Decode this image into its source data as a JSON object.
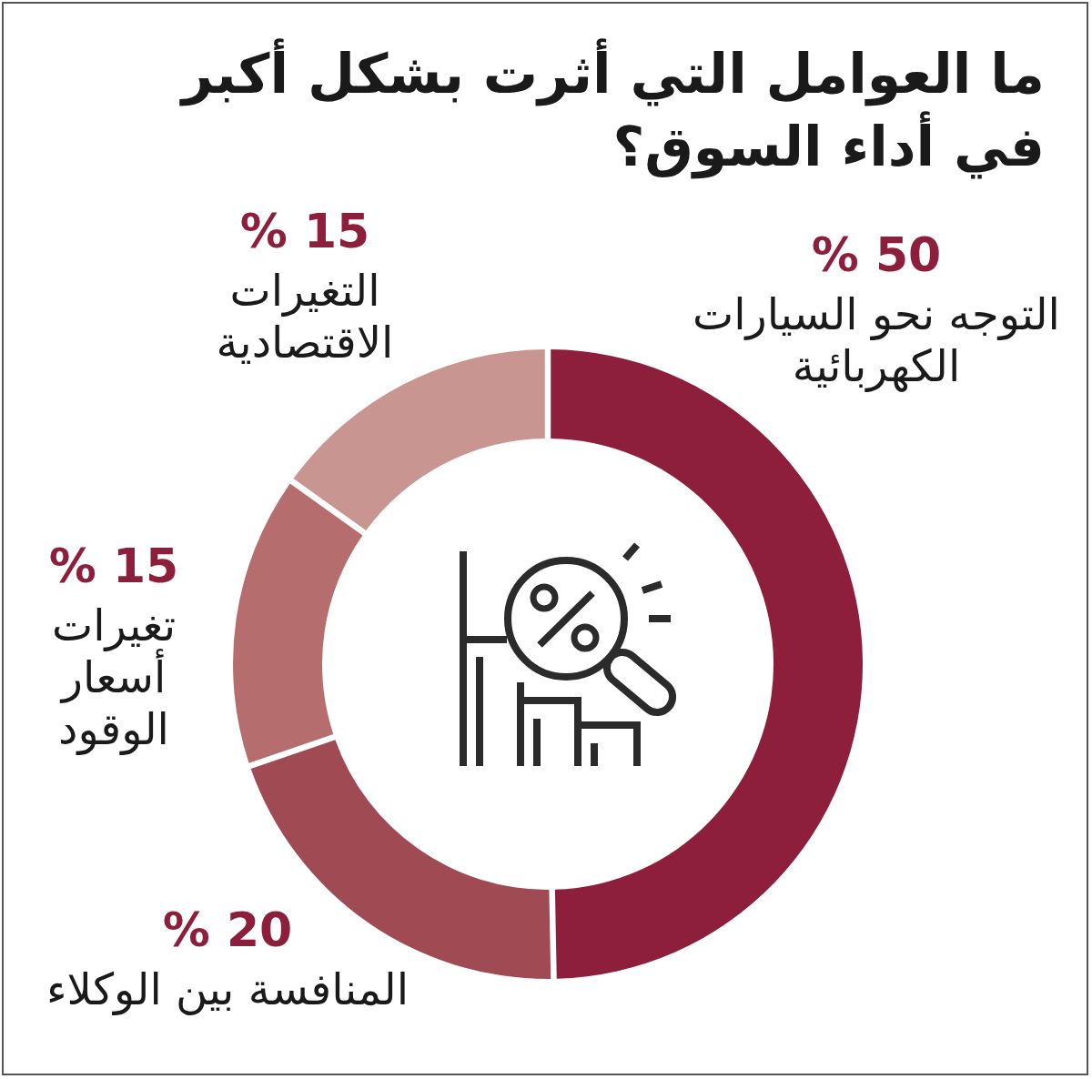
{
  "chart_data": {
    "type": "donut",
    "title": "ما العوامل التي أثرت بشكل أكبر في أداء السوق؟",
    "categories": [
      "التوجه نحو السيارات الكهربائية",
      "المنافسة بين الوكلاء",
      "تغيرات أسعار الوقود",
      "التغيرات الاقتصادية"
    ],
    "values": [
      50,
      20,
      15,
      15
    ],
    "colors": [
      "#8e1f3c",
      "#a04b53",
      "#b56e6d",
      "#c99591"
    ],
    "value_labels": [
      "50 %",
      "20 %",
      "15 %",
      "15 %"
    ]
  }
}
